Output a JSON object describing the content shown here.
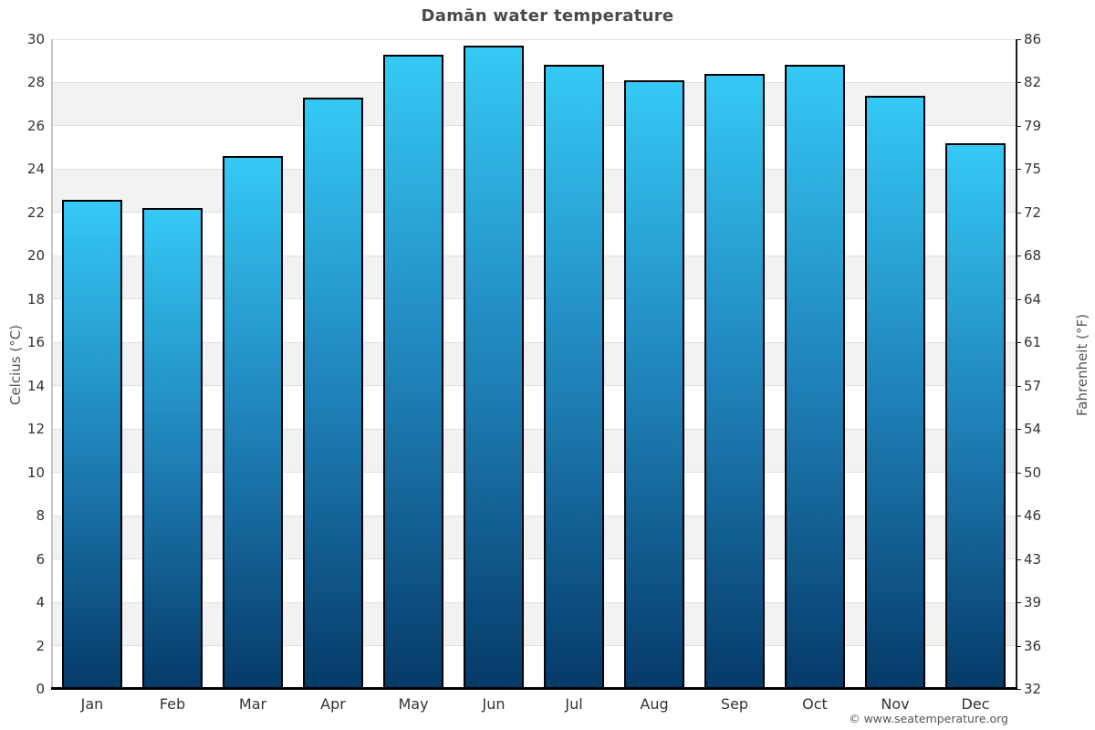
{
  "title": "Damān water temperature",
  "footer": "© www.seatemperature.org",
  "axes": {
    "left_title": "Celcius (°C)",
    "right_title": "Fahrenheit (°F)"
  },
  "chart_data": {
    "type": "bar",
    "title": "Damān water temperature",
    "categories": [
      "Jan",
      "Feb",
      "Mar",
      "Apr",
      "May",
      "Jun",
      "Jul",
      "Aug",
      "Sep",
      "Oct",
      "Nov",
      "Dec"
    ],
    "values": [
      22.6,
      22.2,
      24.6,
      27.3,
      29.3,
      29.7,
      28.8,
      28.1,
      28.4,
      28.8,
      27.4,
      25.2
    ],
    "xlabel": "",
    "ylabel_left": "Celcius (°C)",
    "ylabel_right": "Fahrenheit (°F)",
    "ylim": [
      0,
      30
    ],
    "celsius_ticks": [
      0,
      2,
      4,
      6,
      8,
      10,
      12,
      14,
      16,
      18,
      20,
      22,
      24,
      26,
      28,
      30
    ],
    "fahrenheit_tick_labels": [
      "32",
      "36",
      "39",
      "43",
      "46",
      "50",
      "54",
      "57",
      "61",
      "64",
      "68",
      "72",
      "75",
      "79",
      "82",
      "86"
    ],
    "legend": false,
    "grid": "horizontal gridlines with alternating background bands",
    "colors": {
      "bar_gradient_top": "#35c9f6",
      "bar_gradient_mid": "#1f82b9",
      "bar_gradient_bottom": "#053a68",
      "bar_border": "#000000",
      "band_gray": "#f2f2f2",
      "band_white": "#ffffff",
      "gridline": "#e0e0e0",
      "title_text": "#4a4a4a",
      "tick_text": "#333333",
      "axis_title_text": "#555555"
    }
  }
}
